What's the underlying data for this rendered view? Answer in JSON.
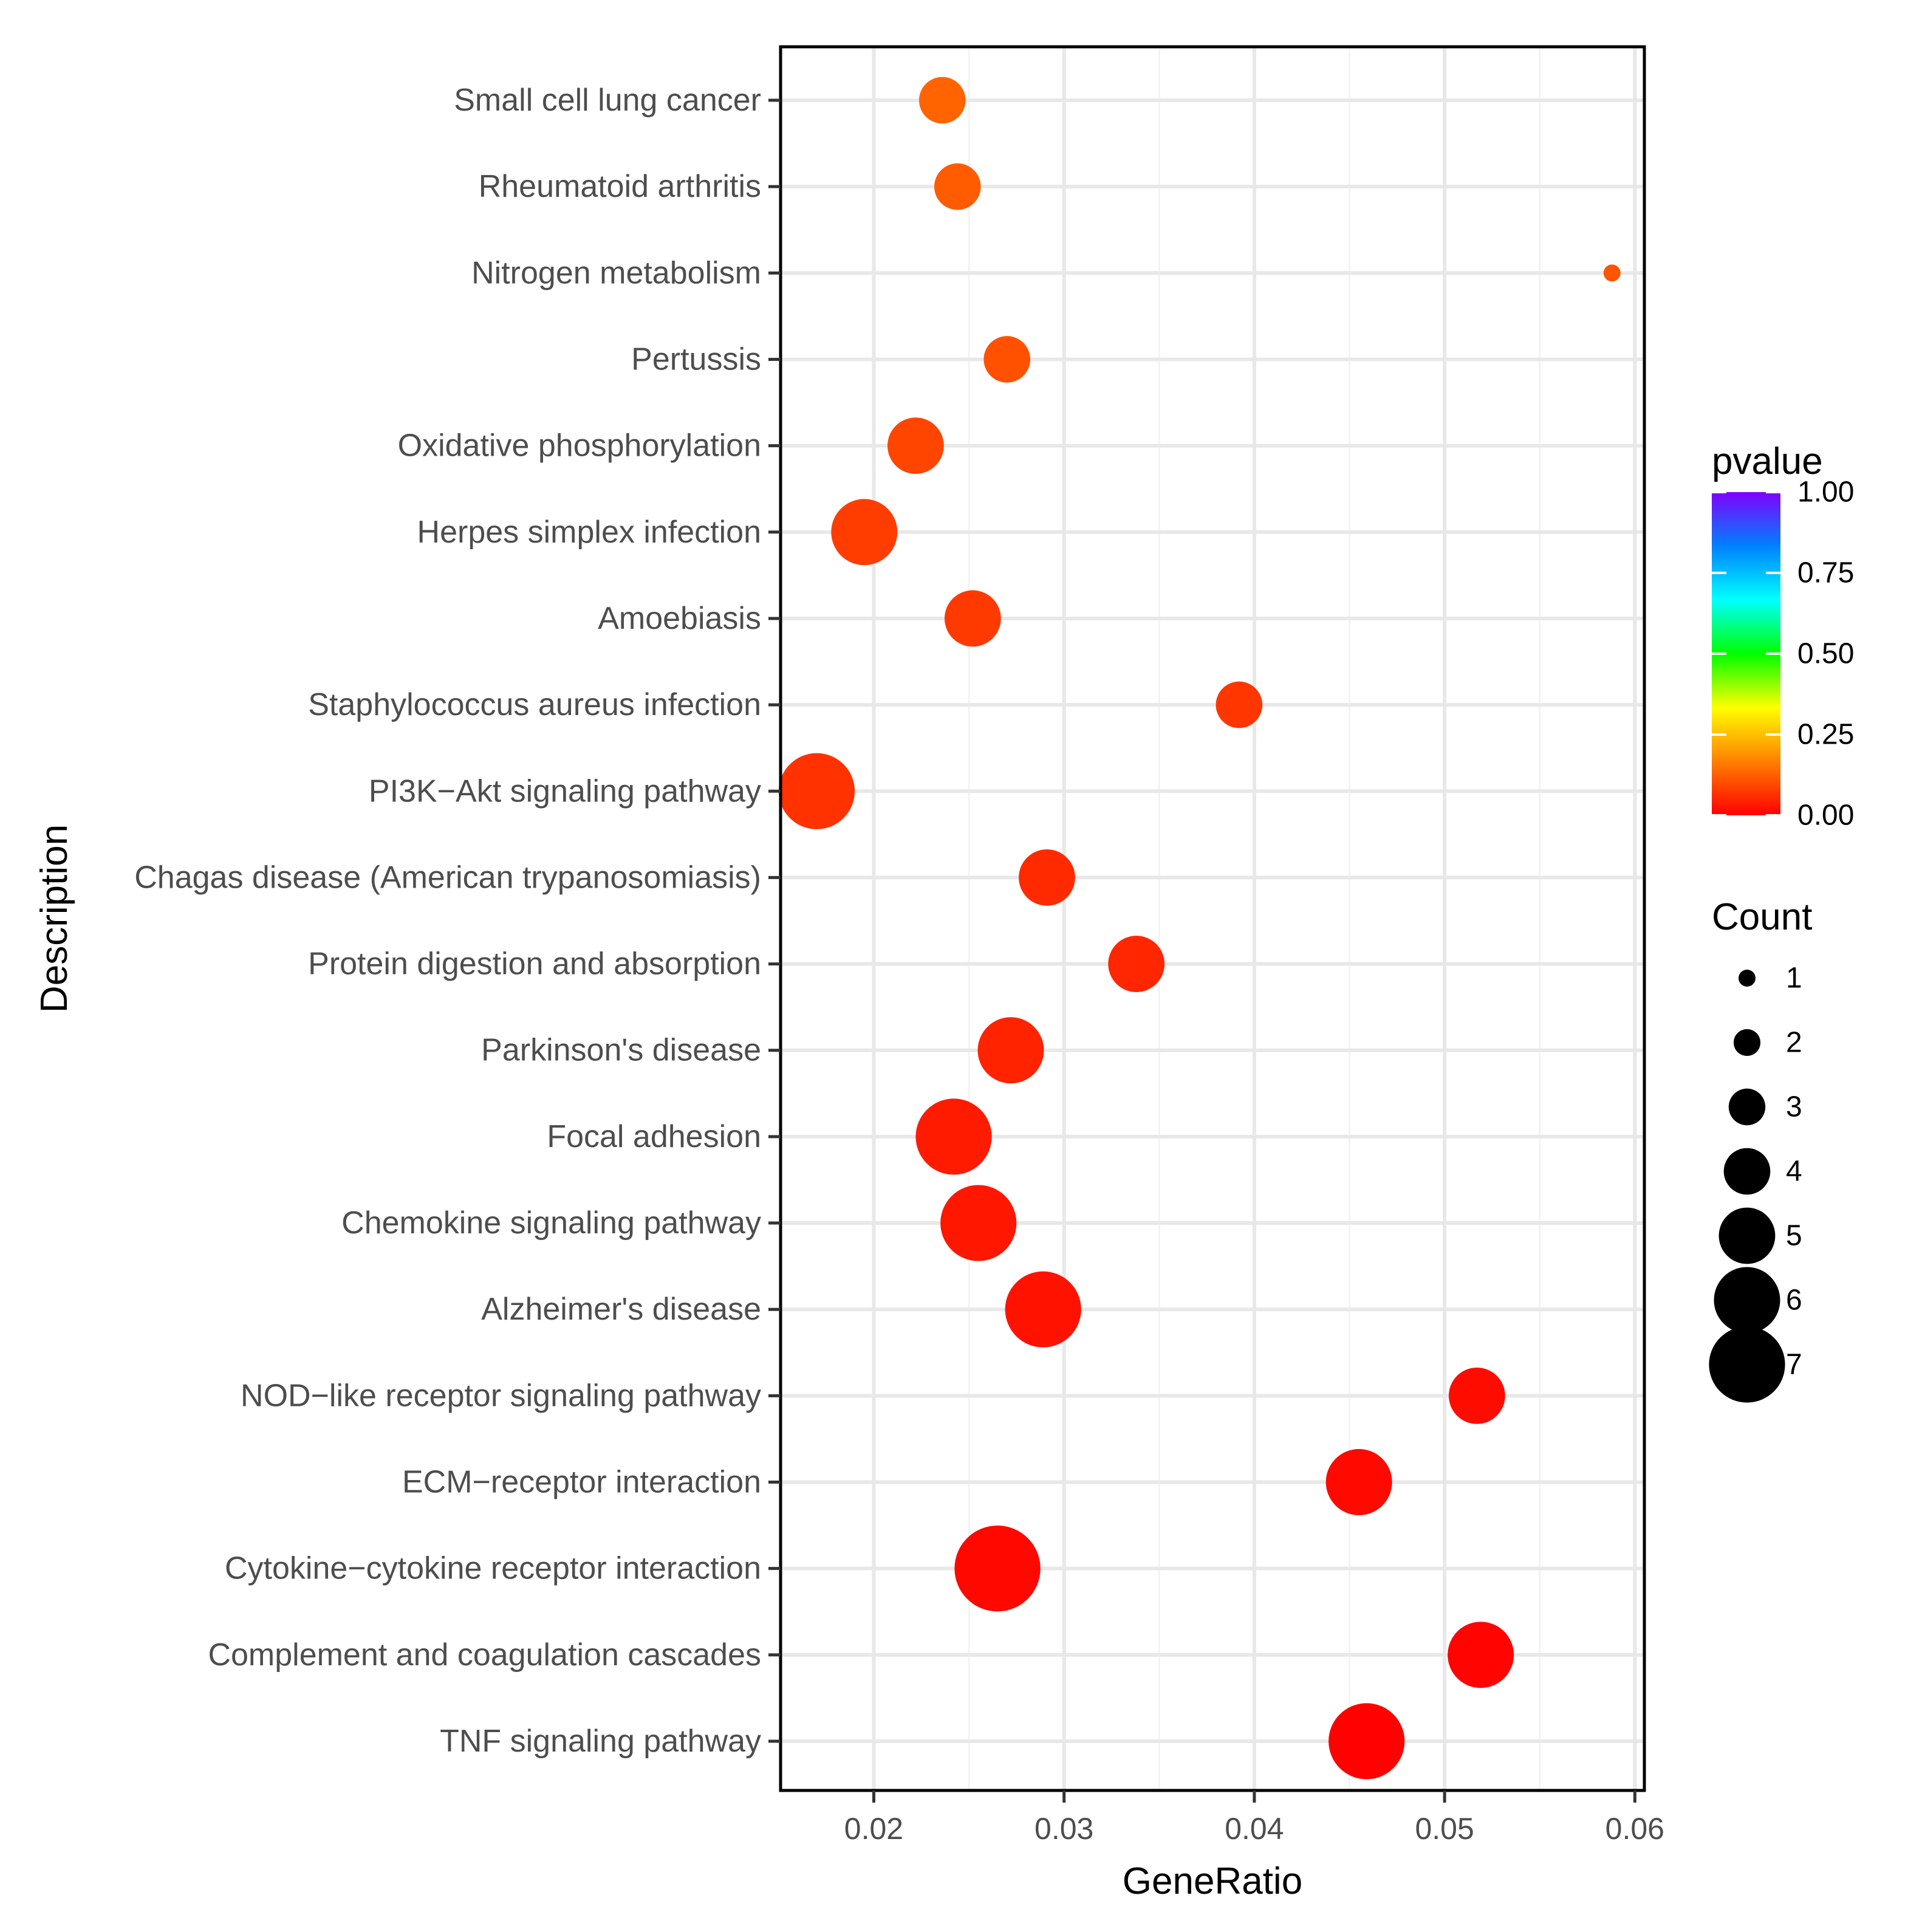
{
  "chart_data": {
    "type": "scatter",
    "title": "",
    "xlabel": "GeneRatio",
    "ylabel": "Description",
    "xlim": [
      0.0151,
      0.0605
    ],
    "x_ticks": [
      0.02,
      0.03,
      0.04,
      0.05,
      0.06
    ],
    "x_tick_labels": [
      "0.02",
      "0.03",
      "0.04",
      "0.05",
      "0.06"
    ],
    "grid": true,
    "categories": [
      "Small cell lung cancer",
      "Rheumatoid arthritis",
      "Nitrogen metabolism",
      "Pertussis",
      "Oxidative phosphorylation",
      "Herpes simplex infection",
      "Amoebiasis",
      "Staphylococcus aureus infection",
      "PI3K−Akt signaling pathway",
      "Chagas disease (American trypanosomiasis)",
      "Protein digestion and absorption",
      "Parkinson's disease",
      "Focal adhesion",
      "Chemokine signaling pathway",
      "Alzheimer's disease",
      "NOD−like receptor signaling pathway",
      "ECM−receptor interaction",
      "Cytokine−cytokine receptor interaction",
      "Complement and coagulation cascades",
      "TNF signaling pathway"
    ],
    "points": [
      {
        "category": "Small cell lung cancer",
        "x": 0.0236,
        "count": 4,
        "pvalue": 0.13
      },
      {
        "category": "Rheumatoid arthritis",
        "x": 0.0244,
        "count": 4,
        "pvalue": 0.12
      },
      {
        "category": "Nitrogen metabolism",
        "x": 0.0588,
        "count": 1,
        "pvalue": 0.11
      },
      {
        "category": "Pertussis",
        "x": 0.027,
        "count": 4,
        "pvalue": 0.105
      },
      {
        "category": "Oxidative phosphorylation",
        "x": 0.0222,
        "count": 5,
        "pvalue": 0.09
      },
      {
        "category": "Herpes simplex infection",
        "x": 0.0195,
        "count": 6,
        "pvalue": 0.08
      },
      {
        "category": "Amoebiasis",
        "x": 0.0252,
        "count": 5,
        "pvalue": 0.075
      },
      {
        "category": "Staphylococcus aureus infection",
        "x": 0.0392,
        "count": 4,
        "pvalue": 0.07
      },
      {
        "category": "PI3K−Akt signaling pathway",
        "x": 0.017,
        "count": 7,
        "pvalue": 0.065
      },
      {
        "category": "Chagas disease (American trypanosomiasis)",
        "x": 0.0291,
        "count": 5,
        "pvalue": 0.055
      },
      {
        "category": "Protein digestion and absorption",
        "x": 0.0338,
        "count": 5,
        "pvalue": 0.05
      },
      {
        "category": "Parkinson's disease",
        "x": 0.0272,
        "count": 6,
        "pvalue": 0.045
      },
      {
        "category": "Focal adhesion",
        "x": 0.0242,
        "count": 7,
        "pvalue": 0.035
      },
      {
        "category": "Chemokine signaling pathway",
        "x": 0.0255,
        "count": 7,
        "pvalue": 0.03
      },
      {
        "category": "Alzheimer's disease",
        "x": 0.0289,
        "count": 7,
        "pvalue": 0.025
      },
      {
        "category": "NOD−like receptor signaling pathway",
        "x": 0.0517,
        "count": 5,
        "pvalue": 0.015
      },
      {
        "category": "ECM−receptor interaction",
        "x": 0.0455,
        "count": 6,
        "pvalue": 0.012
      },
      {
        "category": "Cytokine−cytokine receptor interaction",
        "x": 0.0265,
        "count": 8,
        "pvalue": 0.01
      },
      {
        "category": "Complement and coagulation cascades",
        "x": 0.0519,
        "count": 6,
        "pvalue": 0.005
      },
      {
        "category": "TNF signaling pathway",
        "x": 0.0459,
        "count": 7,
        "pvalue": 0.003
      }
    ],
    "legend": {
      "position": "right",
      "color": {
        "title": "pvalue",
        "range": [
          0.0,
          1.0
        ],
        "ticks": [
          1.0,
          0.75,
          0.5,
          0.25,
          0.0
        ],
        "tick_labels": [
          "1.00",
          "0.75",
          "0.50",
          "0.25",
          "0.00"
        ],
        "gradient": [
          "#ff0000",
          "#ff8000",
          "#ffff00",
          "#00ff00",
          "#00ffff",
          "#0080ff",
          "#8000ff"
        ]
      },
      "size": {
        "title": "Count",
        "values": [
          1,
          2,
          3,
          4,
          5,
          6,
          7
        ],
        "labels": [
          "1",
          "2",
          "3",
          "4",
          "5",
          "6",
          "7"
        ],
        "color": "#000000"
      }
    }
  }
}
